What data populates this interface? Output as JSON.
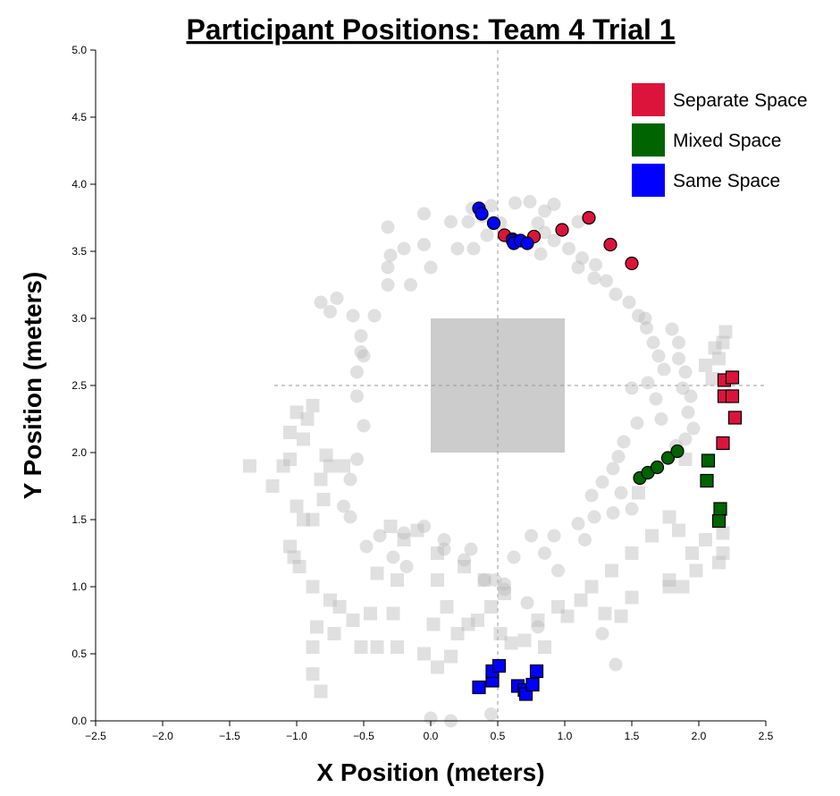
{
  "chart_data": {
    "type": "scatter",
    "title": "Participant Positions: Team 4 Trial 1",
    "xlabel": "X Position (meters)",
    "ylabel": "Y Position (meters)",
    "xlim": [
      -2.5,
      2.5
    ],
    "ylim": [
      0.0,
      5.0
    ],
    "x_ticks": [
      "−2.5",
      "−2.0",
      "−1.5",
      "−1.0",
      "−0.5",
      "0.0",
      "0.5",
      "1.0",
      "1.5",
      "2.0",
      "2.5"
    ],
    "y_ticks": [
      "0.0",
      "0.5",
      "1.0",
      "1.5",
      "2.0",
      "2.5",
      "3.0",
      "3.5",
      "4.0",
      "4.5",
      "5.0"
    ],
    "reference_lines": {
      "x": 0.5,
      "y": 2.5
    },
    "table_region": {
      "x": [
        0.0,
        1.0
      ],
      "y": [
        2.0,
        3.0
      ],
      "color": "#cccccc"
    },
    "legend": {
      "position": "top-right",
      "entries": [
        {
          "label": "Separate Space",
          "color": "#dc143c"
        },
        {
          "label": "Mixed Space",
          "color": "#006400"
        },
        {
          "label": "Same Space",
          "color": "#0000ff"
        }
      ]
    },
    "series": [
      {
        "condition": "Separate Space",
        "color": "#dc143c",
        "circles": [
          [
            0.55,
            3.62
          ],
          [
            0.61,
            3.59
          ],
          [
            0.77,
            3.61
          ],
          [
            0.98,
            3.66
          ],
          [
            1.18,
            3.75
          ],
          [
            1.34,
            3.55
          ],
          [
            1.5,
            3.41
          ]
        ],
        "squares": [
          [
            2.19,
            2.54
          ],
          [
            2.25,
            2.56
          ],
          [
            2.19,
            2.42
          ],
          [
            2.25,
            2.42
          ],
          [
            2.27,
            2.26
          ],
          [
            2.18,
            2.07
          ]
        ]
      },
      {
        "condition": "Mixed Space",
        "color": "#006400",
        "circles": [
          [
            1.56,
            1.81
          ],
          [
            1.62,
            1.85
          ],
          [
            1.69,
            1.89
          ],
          [
            1.77,
            1.96
          ],
          [
            1.84,
            2.01
          ]
        ],
        "squares": [
          [
            2.07,
            1.94
          ],
          [
            2.06,
            1.79
          ],
          [
            2.16,
            1.58
          ],
          [
            2.15,
            1.49
          ]
        ]
      },
      {
        "condition": "Same Space",
        "color": "#0000ff",
        "circles": [
          [
            0.36,
            3.82
          ],
          [
            0.38,
            3.78
          ],
          [
            0.47,
            3.71
          ],
          [
            0.61,
            3.58
          ],
          [
            0.62,
            3.56
          ],
          [
            0.67,
            3.58
          ],
          [
            0.72,
            3.56
          ]
        ],
        "squares": [
          [
            0.36,
            0.25
          ],
          [
            0.46,
            0.3
          ],
          [
            0.46,
            0.37
          ],
          [
            0.51,
            0.41
          ],
          [
            0.65,
            0.26
          ],
          [
            0.7,
            0.23
          ],
          [
            0.71,
            0.2
          ],
          [
            0.76,
            0.27
          ],
          [
            0.79,
            0.37
          ]
        ]
      }
    ],
    "background_points": {
      "color": "#bbbbbb",
      "circles": [
        [
          0.31,
          3.82
        ],
        [
          0.39,
          3.76
        ],
        [
          0.45,
          3.84
        ],
        [
          0.52,
          3.71
        ],
        [
          0.63,
          3.86
        ],
        [
          0.74,
          3.87
        ],
        [
          0.8,
          3.71
        ],
        [
          0.85,
          3.64
        ],
        [
          0.92,
          3.58
        ],
        [
          1.03,
          3.52
        ],
        [
          1.13,
          3.45
        ],
        [
          1.23,
          3.4
        ],
        [
          1.31,
          3.28
        ],
        [
          1.38,
          3.18
        ],
        [
          1.48,
          3.12
        ],
        [
          1.55,
          3.02
        ],
        [
          1.61,
          2.93
        ],
        [
          1.66,
          2.82
        ],
        [
          1.7,
          2.72
        ],
        [
          1.74,
          2.62
        ],
        [
          1.8,
          2.92
        ],
        [
          1.85,
          2.82
        ],
        [
          1.85,
          2.7
        ],
        [
          1.9,
          2.6
        ],
        [
          1.88,
          2.48
        ],
        [
          1.94,
          2.42
        ],
        [
          1.92,
          2.3
        ],
        [
          1.96,
          2.18
        ],
        [
          1.9,
          2.1
        ],
        [
          1.83,
          2.05
        ],
        [
          1.72,
          2.25
        ],
        [
          1.68,
          2.4
        ],
        [
          1.62,
          2.52
        ],
        [
          1.5,
          2.48
        ],
        [
          1.54,
          2.22
        ],
        [
          1.44,
          2.08
        ],
        [
          1.4,
          1.97
        ],
        [
          1.36,
          1.88
        ],
        [
          1.28,
          1.78
        ],
        [
          1.2,
          1.68
        ],
        [
          1.42,
          1.7
        ],
        [
          1.5,
          1.58
        ],
        [
          1.36,
          1.55
        ],
        [
          1.22,
          1.52
        ],
        [
          1.1,
          1.47
        ],
        [
          1.15,
          1.35
        ],
        [
          0.92,
          1.38
        ],
        [
          0.75,
          1.38
        ],
        [
          0.62,
          1.22
        ],
        [
          0.55,
          1.02
        ],
        [
          0.4,
          1.05
        ],
        [
          0.25,
          1.2
        ],
        [
          0.1,
          1.35
        ],
        [
          -0.05,
          1.45
        ],
        [
          -0.2,
          1.4
        ],
        [
          -0.38,
          1.38
        ],
        [
          -0.48,
          1.3
        ],
        [
          -0.6,
          1.52
        ],
        [
          -0.65,
          1.6
        ],
        [
          -0.6,
          1.8
        ],
        [
          -0.55,
          1.95
        ],
        [
          -0.5,
          2.2
        ],
        [
          -0.55,
          2.42
        ],
        [
          -0.55,
          2.6
        ],
        [
          -0.52,
          2.75
        ],
        [
          -0.52,
          2.87
        ],
        [
          -0.42,
          3.02
        ],
        [
          -0.58,
          3.02
        ],
        [
          -0.75,
          3.05
        ],
        [
          -0.82,
          3.12
        ],
        [
          -0.7,
          3.15
        ],
        [
          -0.32,
          3.25
        ],
        [
          -0.15,
          3.25
        ],
        [
          -0.32,
          3.38
        ],
        [
          -0.3,
          3.47
        ],
        [
          -0.2,
          3.52
        ],
        [
          -0.05,
          3.55
        ],
        [
          0.0,
          3.38
        ],
        [
          0.2,
          3.52
        ],
        [
          0.32,
          3.52
        ],
        [
          0.42,
          3.62
        ],
        [
          0.28,
          3.72
        ],
        [
          0.15,
          3.72
        ],
        [
          -0.05,
          3.78
        ],
        [
          -0.32,
          3.68
        ],
        [
          0.82,
          3.48
        ],
        [
          1.1,
          3.38
        ],
        [
          1.22,
          3.3
        ],
        [
          0.85,
          3.8
        ],
        [
          1.1,
          3.72
        ],
        [
          0.92,
          3.85
        ],
        [
          -0.28,
          1.22
        ],
        [
          -0.18,
          1.15
        ],
        [
          0.1,
          1.28
        ],
        [
          0.3,
          1.28
        ],
        [
          0.48,
          1.05
        ],
        [
          0.55,
          0.98
        ],
        [
          0.72,
          0.88
        ],
        [
          0.95,
          1.12
        ],
        [
          0.85,
          1.25
        ],
        [
          0.0,
          0.02
        ],
        [
          0.15,
          0.0
        ],
        [
          0.45,
          0.05
        ],
        [
          0.8,
          0.7
        ],
        [
          1.28,
          0.65
        ],
        [
          1.38,
          0.42
        ],
        [
          -0.5,
          2.72
        ],
        [
          1.6,
          3.0
        ]
      ]
    },
    "background_squares": {
      "color": "#bbbbbb",
      "squares": [
        [
          -1.35,
          1.9
        ],
        [
          -1.18,
          1.75
        ],
        [
          -1.1,
          1.9
        ],
        [
          -1.05,
          1.95
        ],
        [
          -1.05,
          2.15
        ],
        [
          -0.92,
          2.25
        ],
        [
          -0.88,
          2.35
        ],
        [
          -1.0,
          2.3
        ],
        [
          -0.95,
          2.1
        ],
        [
          -0.78,
          1.98
        ],
        [
          -0.82,
          1.8
        ],
        [
          -0.75,
          1.9
        ],
        [
          -0.65,
          1.9
        ],
        [
          -0.8,
          1.65
        ],
        [
          -0.88,
          1.5
        ],
        [
          -0.95,
          1.5
        ],
        [
          -1.0,
          1.6
        ],
        [
          -1.05,
          1.3
        ],
        [
          -1.02,
          1.22
        ],
        [
          -0.98,
          1.15
        ],
        [
          -0.88,
          1.0
        ],
        [
          -0.75,
          0.9
        ],
        [
          -0.68,
          0.85
        ],
        [
          -0.58,
          0.75
        ],
        [
          -0.72,
          0.65
        ],
        [
          -0.85,
          0.7
        ],
        [
          -0.88,
          0.55
        ],
        [
          -0.88,
          0.35
        ],
        [
          -0.82,
          0.22
        ],
        [
          -0.52,
          0.55
        ],
        [
          -0.4,
          0.55
        ],
        [
          -0.25,
          0.55
        ],
        [
          -0.45,
          0.8
        ],
        [
          -0.28,
          0.8
        ],
        [
          -0.4,
          1.1
        ],
        [
          -0.25,
          1.05
        ],
        [
          -0.2,
          1.35
        ],
        [
          -0.3,
          1.45
        ],
        [
          -0.1,
          1.42
        ],
        [
          0.05,
          1.25
        ],
        [
          0.05,
          1.05
        ],
        [
          0.25,
          1.15
        ],
        [
          0.4,
          1.05
        ],
        [
          0.55,
          0.95
        ],
        [
          0.45,
          0.85
        ],
        [
          0.35,
          0.75
        ],
        [
          0.2,
          0.65
        ],
        [
          0.15,
          0.48
        ],
        [
          0.05,
          0.4
        ],
        [
          -0.05,
          0.5
        ],
        [
          0.02,
          0.72
        ],
        [
          0.12,
          0.85
        ],
        [
          0.28,
          0.72
        ],
        [
          0.52,
          0.65
        ],
        [
          0.6,
          0.58
        ],
        [
          0.7,
          0.6
        ],
        [
          0.8,
          0.75
        ],
        [
          0.85,
          0.55
        ],
        [
          0.95,
          0.85
        ],
        [
          1.02,
          0.78
        ],
        [
          1.12,
          0.9
        ],
        [
          1.2,
          1.0
        ],
        [
          1.35,
          1.12
        ],
        [
          1.5,
          1.25
        ],
        [
          1.65,
          1.38
        ],
        [
          1.78,
          1.52
        ],
        [
          1.85,
          1.42
        ],
        [
          1.95,
          1.25
        ],
        [
          2.05,
          1.35
        ],
        [
          1.78,
          1.05
        ],
        [
          1.98,
          1.12
        ],
        [
          2.15,
          1.18
        ],
        [
          2.18,
          1.25
        ],
        [
          2.18,
          1.4
        ],
        [
          1.88,
          1.0
        ],
        [
          1.78,
          1.0
        ],
        [
          1.42,
          0.78
        ],
        [
          1.5,
          0.92
        ],
        [
          1.3,
          0.8
        ],
        [
          2.12,
          2.78
        ],
        [
          2.15,
          2.7
        ],
        [
          2.18,
          2.82
        ],
        [
          2.2,
          2.9
        ],
        [
          2.05,
          2.65
        ],
        [
          2.1,
          2.55
        ],
        [
          1.9,
          1.95
        ],
        [
          1.55,
          1.7
        ]
      ]
    }
  }
}
